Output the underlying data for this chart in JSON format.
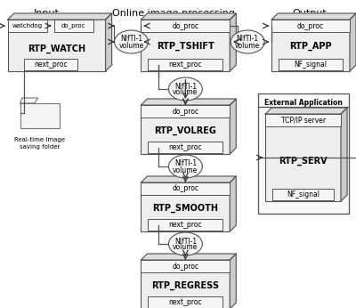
{
  "title_input": "Input",
  "title_online": "Online image processing",
  "title_output": "Output",
  "modules": [
    {
      "name": "RTP_WATCH",
      "col": "input",
      "bottom": "next_proc",
      "top_labels": [
        "watchdog",
        "do_proc"
      ]
    },
    {
      "name": "RTP_TSHIFT",
      "col": "online",
      "bottom": "next_proc"
    },
    {
      "name": "RTP_VOLREG",
      "col": "online",
      "bottom": "next_proc"
    },
    {
      "name": "RTP_SMOOTH",
      "col": "online",
      "bottom": "next_proc"
    },
    {
      "name": "RTP_REGRESS",
      "col": "online",
      "bottom": "next_proc"
    },
    {
      "name": "RTP_APP",
      "col": "output",
      "bottom": "NF_signal"
    },
    {
      "name": "RTP_SERV",
      "col": "output_inner",
      "bottom": "NF_signal",
      "top_inner": "TCP/IP server"
    }
  ],
  "face_color": "#eeeeee",
  "top_face_color": "#dddddd",
  "right_face_color": "#cccccc",
  "sub_box_color": "#f5f5f5",
  "edge_color": "#555555",
  "ext_app_color": "#f8f8f8"
}
